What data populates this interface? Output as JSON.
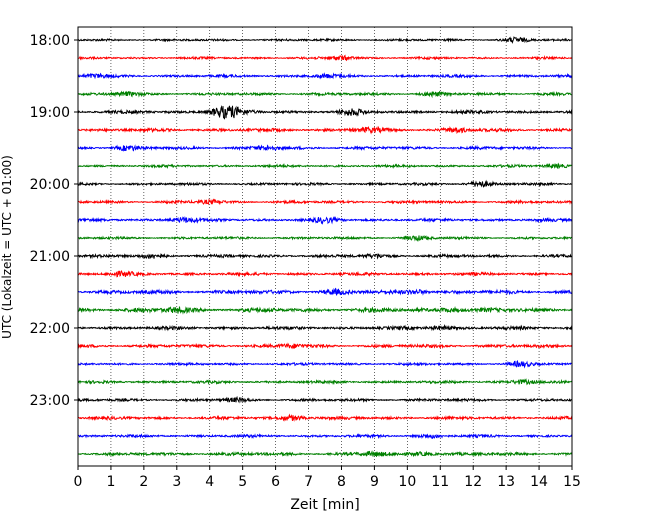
{
  "chart_data": {
    "type": "line",
    "title": "",
    "xlabel": "Zeit  [min]",
    "ylabel": "UTC (Lokalzeit = UTC + 01:00)",
    "xlim": [
      0,
      15
    ],
    "x_ticks": [
      "0",
      "1",
      "2",
      "3",
      "4",
      "5",
      "6",
      "7",
      "8",
      "9",
      "10",
      "11",
      "12",
      "13",
      "14",
      "15"
    ],
    "y_tick_labels": [
      "18:00",
      "19:00",
      "20:00",
      "21:00",
      "22:00",
      "23:00"
    ],
    "grid": "vertical dotted at each minute",
    "legend": "none",
    "trace_colors": [
      "#000000",
      "#ff0000",
      "#0000ff",
      "#008000"
    ],
    "series": [
      {
        "start": "18:00",
        "amplitude": 0.9,
        "bursts": [
          [
            13.3,
            2.0
          ]
        ]
      },
      {
        "start": "18:15",
        "amplitude": 0.9,
        "bursts": [
          [
            8.0,
            2.0
          ]
        ]
      },
      {
        "start": "18:30",
        "amplitude": 1.1,
        "bursts": [
          [
            0.5,
            1.5
          ],
          [
            7.5,
            1.5
          ]
        ]
      },
      {
        "start": "18:45",
        "amplitude": 1.1,
        "bursts": [
          [
            1.5,
            1.5
          ],
          [
            10.8,
            1.5
          ]
        ]
      },
      {
        "start": "19:00",
        "amplitude": 1.3,
        "bursts": [
          [
            4.5,
            5.5
          ],
          [
            8.3,
            2.2
          ]
        ]
      },
      {
        "start": "19:15",
        "amplitude": 1.3,
        "bursts": [
          [
            11.5,
            2.0
          ],
          [
            8.8,
            1.8
          ]
        ]
      },
      {
        "start": "19:30",
        "amplitude": 1.2,
        "bursts": [
          [
            1.5,
            1.8
          ],
          [
            5.8,
            1.8
          ]
        ]
      },
      {
        "start": "19:45",
        "amplitude": 1.0,
        "bursts": [
          [
            14.5,
            1.6
          ]
        ]
      },
      {
        "start": "20:00",
        "amplitude": 1.0,
        "bursts": [
          [
            12.2,
            2.5
          ]
        ]
      },
      {
        "start": "20:15",
        "amplitude": 1.1,
        "bursts": [
          [
            4.0,
            1.5
          ]
        ]
      },
      {
        "start": "20:30",
        "amplitude": 1.2,
        "bursts": [
          [
            3.2,
            2.2
          ],
          [
            7.5,
            1.8
          ]
        ]
      },
      {
        "start": "20:45",
        "amplitude": 1.0,
        "bursts": [
          [
            10.3,
            1.8
          ]
        ]
      },
      {
        "start": "21:00",
        "amplitude": 1.2,
        "bursts": [
          [
            2.3,
            1.8
          ],
          [
            9.0,
            1.5
          ]
        ]
      },
      {
        "start": "21:15",
        "amplitude": 1.2,
        "bursts": [
          [
            1.3,
            1.6
          ]
        ]
      },
      {
        "start": "21:30",
        "amplitude": 1.5,
        "bursts": [
          [
            7.8,
            2.0
          ],
          [
            10.3,
            2.0
          ]
        ]
      },
      {
        "start": "21:45",
        "amplitude": 1.7,
        "bursts": [
          [
            3.0,
            2.2
          ],
          [
            11.3,
            1.8
          ]
        ]
      },
      {
        "start": "22:00",
        "amplitude": 1.3,
        "bursts": [
          [
            11.0,
            1.6
          ]
        ]
      },
      {
        "start": "22:15",
        "amplitude": 1.3,
        "bursts": [
          [
            6.5,
            1.5
          ]
        ]
      },
      {
        "start": "22:30",
        "amplitude": 1.0,
        "bursts": [
          [
            13.4,
            2.0
          ]
        ]
      },
      {
        "start": "22:45",
        "amplitude": 1.1,
        "bursts": [
          [
            13.5,
            1.8
          ]
        ]
      },
      {
        "start": "23:00",
        "amplitude": 1.1,
        "bursts": [
          [
            4.8,
            1.5
          ]
        ]
      },
      {
        "start": "23:15",
        "amplitude": 1.2,
        "bursts": [
          [
            6.5,
            2.3
          ]
        ]
      },
      {
        "start": "23:30",
        "amplitude": 1.1,
        "bursts": [
          [
            10.7,
            1.6
          ]
        ]
      },
      {
        "start": "23:45",
        "amplitude": 1.3,
        "bursts": [
          [
            9.0,
            1.8
          ],
          [
            10.5,
            1.6
          ]
        ]
      }
    ]
  }
}
